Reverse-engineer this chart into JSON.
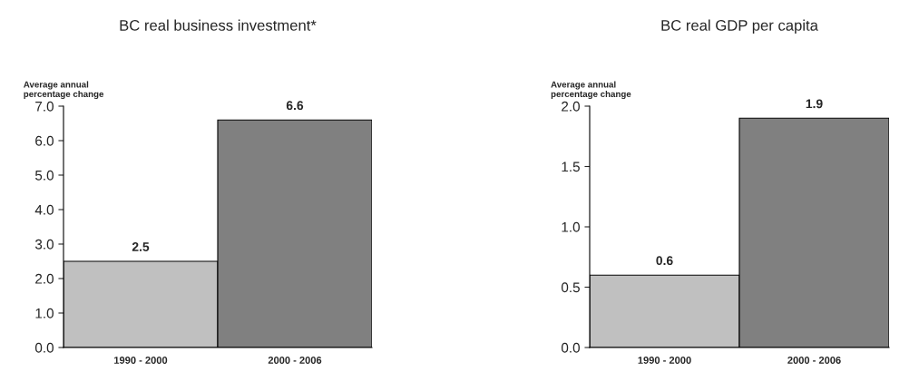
{
  "chart_data": [
    {
      "type": "bar",
      "title": "BC real business investment*",
      "ylabel": "Average annual\npercentage change",
      "categories": [
        "1990 - 2000",
        "2000 - 2006"
      ],
      "values": [
        2.5,
        6.6
      ],
      "colors": [
        "#c0c0c0",
        "#808080"
      ],
      "ylim": [
        0,
        7
      ],
      "yticks": [
        {
          "value": 0,
          "label": "0.0"
        },
        {
          "value": 1,
          "label": "1.0"
        },
        {
          "value": 2,
          "label": "2.0"
        },
        {
          "value": 3,
          "label": "3.0"
        },
        {
          "value": 4,
          "label": "4.0"
        },
        {
          "value": 5,
          "label": "5.0"
        },
        {
          "value": 6,
          "label": "6.0"
        },
        {
          "value": 7,
          "label": "7.0"
        }
      ],
      "data_labels": true,
      "grid": false,
      "legend": false
    },
    {
      "type": "bar",
      "title": "BC real GDP per capita",
      "ylabel": "Average annual\npercentage change",
      "categories": [
        "1990 - 2000",
        "2000 - 2006"
      ],
      "values": [
        0.6,
        1.9
      ],
      "colors": [
        "#c0c0c0",
        "#808080"
      ],
      "ylim": [
        0,
        2
      ],
      "yticks": [
        {
          "value": 0,
          "label": "0.0"
        },
        {
          "value": 0.5,
          "label": "0.5"
        },
        {
          "value": 1,
          "label": "1.0"
        },
        {
          "value": 1.5,
          "label": "1.5"
        },
        {
          "value": 2,
          "label": "2.0"
        }
      ],
      "data_labels": true,
      "grid": false,
      "legend": false
    }
  ]
}
